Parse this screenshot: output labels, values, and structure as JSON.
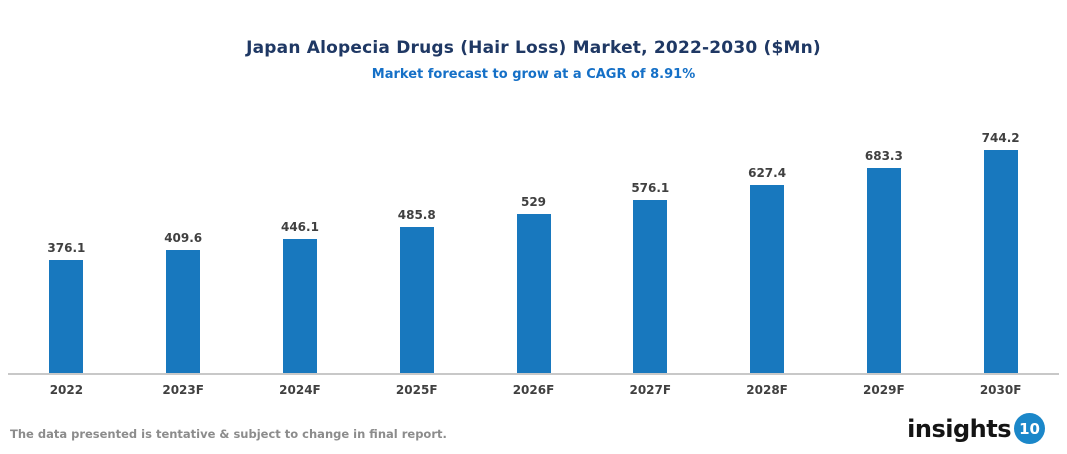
{
  "header": {
    "title": "Japan Alopecia Drugs (Hair Loss) Market, 2022-2030 ($Mn)",
    "subtitle": "Market forecast to grow at a CAGR of 8.91%"
  },
  "chart_data": {
    "type": "bar",
    "title": "Japan Alopecia Drugs (Hair Loss) Market, 2022-2030 ($Mn)",
    "subtitle": "Market forecast to grow at a CAGR of 8.91%",
    "categories": [
      "2022",
      "2023F",
      "2024F",
      "2025F",
      "2026F",
      "2027F",
      "2028F",
      "2029F",
      "2030F"
    ],
    "values": [
      376.1,
      409.6,
      446.1,
      485.8,
      529,
      576.1,
      627.4,
      683.3,
      744.2
    ],
    "value_labels": [
      "376.1",
      "409.6",
      "446.1",
      "485.8",
      "529",
      "576.1",
      "627.4",
      "683.3",
      "744.2"
    ],
    "xlabel": "",
    "ylabel": "",
    "ylim": [
      0,
      800
    ],
    "grid": false,
    "legend": false,
    "data_labels": "above-bars",
    "bar_color": "#1878BE"
  },
  "colors": {
    "bar": "#1878BE",
    "title": "#1F3864",
    "subtitle": "#1570C7",
    "data_label": "#404040",
    "axis_line": "#C8C8C8",
    "footer_text": "#8C8C8C",
    "logo_badge": "#1B87C9"
  },
  "footer": {
    "disclaimer": "The data presented is tentative & subject to change in final report.",
    "logo": {
      "text": "insights",
      "badge": "10"
    }
  }
}
